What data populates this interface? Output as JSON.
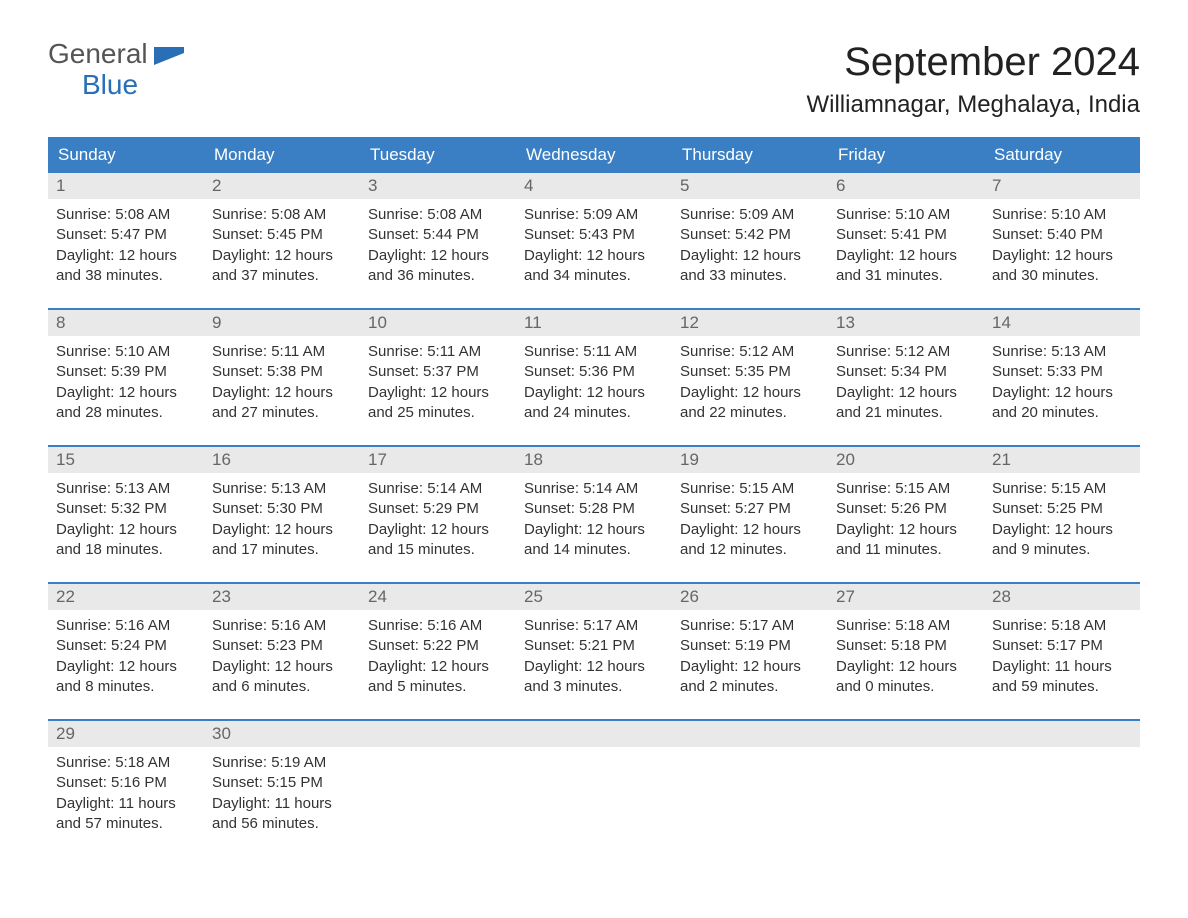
{
  "logo": {
    "word1": "General",
    "word2": "Blue",
    "word1_color": "#555555",
    "word2_color": "#2a6fb5",
    "shape_color": "#2a6fb5"
  },
  "title": "September 2024",
  "location": "Williamnagar, Meghalaya, India",
  "theme": {
    "header_bg": "#3a7fc4",
    "header_text": "#ffffff",
    "daynum_bg": "#e9e9e9",
    "daynum_text": "#666666",
    "divider": "#3a7fc4",
    "body_text": "#333333",
    "page_bg": "#ffffff",
    "title_fontsize": 40,
    "location_fontsize": 24,
    "weekday_fontsize": 17,
    "body_fontsize": 15
  },
  "weekdays": [
    "Sunday",
    "Monday",
    "Tuesday",
    "Wednesday",
    "Thursday",
    "Friday",
    "Saturday"
  ],
  "weeks": [
    [
      {
        "num": "1",
        "sunrise": "Sunrise: 5:08 AM",
        "sunset": "Sunset: 5:47 PM",
        "daylight": "Daylight: 12 hours and 38 minutes."
      },
      {
        "num": "2",
        "sunrise": "Sunrise: 5:08 AM",
        "sunset": "Sunset: 5:45 PM",
        "daylight": "Daylight: 12 hours and 37 minutes."
      },
      {
        "num": "3",
        "sunrise": "Sunrise: 5:08 AM",
        "sunset": "Sunset: 5:44 PM",
        "daylight": "Daylight: 12 hours and 36 minutes."
      },
      {
        "num": "4",
        "sunrise": "Sunrise: 5:09 AM",
        "sunset": "Sunset: 5:43 PM",
        "daylight": "Daylight: 12 hours and 34 minutes."
      },
      {
        "num": "5",
        "sunrise": "Sunrise: 5:09 AM",
        "sunset": "Sunset: 5:42 PM",
        "daylight": "Daylight: 12 hours and 33 minutes."
      },
      {
        "num": "6",
        "sunrise": "Sunrise: 5:10 AM",
        "sunset": "Sunset: 5:41 PM",
        "daylight": "Daylight: 12 hours and 31 minutes."
      },
      {
        "num": "7",
        "sunrise": "Sunrise: 5:10 AM",
        "sunset": "Sunset: 5:40 PM",
        "daylight": "Daylight: 12 hours and 30 minutes."
      }
    ],
    [
      {
        "num": "8",
        "sunrise": "Sunrise: 5:10 AM",
        "sunset": "Sunset: 5:39 PM",
        "daylight": "Daylight: 12 hours and 28 minutes."
      },
      {
        "num": "9",
        "sunrise": "Sunrise: 5:11 AM",
        "sunset": "Sunset: 5:38 PM",
        "daylight": "Daylight: 12 hours and 27 minutes."
      },
      {
        "num": "10",
        "sunrise": "Sunrise: 5:11 AM",
        "sunset": "Sunset: 5:37 PM",
        "daylight": "Daylight: 12 hours and 25 minutes."
      },
      {
        "num": "11",
        "sunrise": "Sunrise: 5:11 AM",
        "sunset": "Sunset: 5:36 PM",
        "daylight": "Daylight: 12 hours and 24 minutes."
      },
      {
        "num": "12",
        "sunrise": "Sunrise: 5:12 AM",
        "sunset": "Sunset: 5:35 PM",
        "daylight": "Daylight: 12 hours and 22 minutes."
      },
      {
        "num": "13",
        "sunrise": "Sunrise: 5:12 AM",
        "sunset": "Sunset: 5:34 PM",
        "daylight": "Daylight: 12 hours and 21 minutes."
      },
      {
        "num": "14",
        "sunrise": "Sunrise: 5:13 AM",
        "sunset": "Sunset: 5:33 PM",
        "daylight": "Daylight: 12 hours and 20 minutes."
      }
    ],
    [
      {
        "num": "15",
        "sunrise": "Sunrise: 5:13 AM",
        "sunset": "Sunset: 5:32 PM",
        "daylight": "Daylight: 12 hours and 18 minutes."
      },
      {
        "num": "16",
        "sunrise": "Sunrise: 5:13 AM",
        "sunset": "Sunset: 5:30 PM",
        "daylight": "Daylight: 12 hours and 17 minutes."
      },
      {
        "num": "17",
        "sunrise": "Sunrise: 5:14 AM",
        "sunset": "Sunset: 5:29 PM",
        "daylight": "Daylight: 12 hours and 15 minutes."
      },
      {
        "num": "18",
        "sunrise": "Sunrise: 5:14 AM",
        "sunset": "Sunset: 5:28 PM",
        "daylight": "Daylight: 12 hours and 14 minutes."
      },
      {
        "num": "19",
        "sunrise": "Sunrise: 5:15 AM",
        "sunset": "Sunset: 5:27 PM",
        "daylight": "Daylight: 12 hours and 12 minutes."
      },
      {
        "num": "20",
        "sunrise": "Sunrise: 5:15 AM",
        "sunset": "Sunset: 5:26 PM",
        "daylight": "Daylight: 12 hours and 11 minutes."
      },
      {
        "num": "21",
        "sunrise": "Sunrise: 5:15 AM",
        "sunset": "Sunset: 5:25 PM",
        "daylight": "Daylight: 12 hours and 9 minutes."
      }
    ],
    [
      {
        "num": "22",
        "sunrise": "Sunrise: 5:16 AM",
        "sunset": "Sunset: 5:24 PM",
        "daylight": "Daylight: 12 hours and 8 minutes."
      },
      {
        "num": "23",
        "sunrise": "Sunrise: 5:16 AM",
        "sunset": "Sunset: 5:23 PM",
        "daylight": "Daylight: 12 hours and 6 minutes."
      },
      {
        "num": "24",
        "sunrise": "Sunrise: 5:16 AM",
        "sunset": "Sunset: 5:22 PM",
        "daylight": "Daylight: 12 hours and 5 minutes."
      },
      {
        "num": "25",
        "sunrise": "Sunrise: 5:17 AM",
        "sunset": "Sunset: 5:21 PM",
        "daylight": "Daylight: 12 hours and 3 minutes."
      },
      {
        "num": "26",
        "sunrise": "Sunrise: 5:17 AM",
        "sunset": "Sunset: 5:19 PM",
        "daylight": "Daylight: 12 hours and 2 minutes."
      },
      {
        "num": "27",
        "sunrise": "Sunrise: 5:18 AM",
        "sunset": "Sunset: 5:18 PM",
        "daylight": "Daylight: 12 hours and 0 minutes."
      },
      {
        "num": "28",
        "sunrise": "Sunrise: 5:18 AM",
        "sunset": "Sunset: 5:17 PM",
        "daylight": "Daylight: 11 hours and 59 minutes."
      }
    ],
    [
      {
        "num": "29",
        "sunrise": "Sunrise: 5:18 AM",
        "sunset": "Sunset: 5:16 PM",
        "daylight": "Daylight: 11 hours and 57 minutes."
      },
      {
        "num": "30",
        "sunrise": "Sunrise: 5:19 AM",
        "sunset": "Sunset: 5:15 PM",
        "daylight": "Daylight: 11 hours and 56 minutes."
      },
      {
        "empty": true
      },
      {
        "empty": true
      },
      {
        "empty": true
      },
      {
        "empty": true
      },
      {
        "empty": true
      }
    ]
  ]
}
